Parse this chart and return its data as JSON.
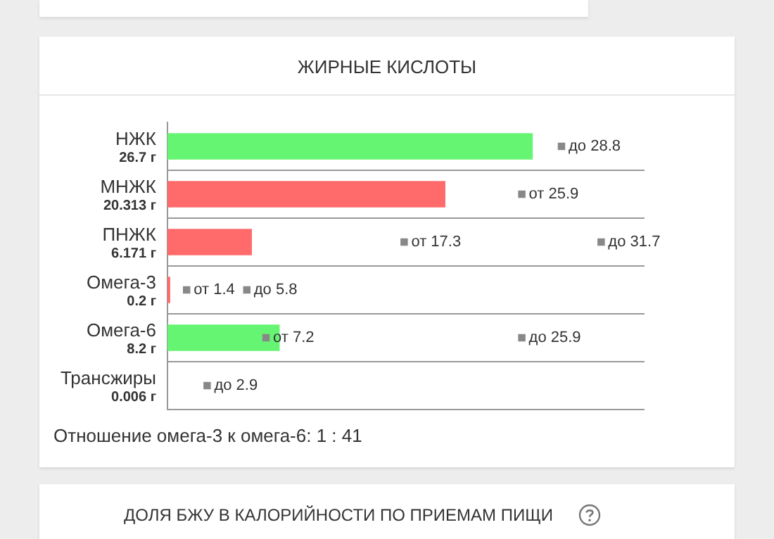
{
  "chart_data": {
    "type": "bar",
    "orientation": "horizontal",
    "title": "ЖИРНЫЕ КИСЛОТЫ",
    "categories": [
      "НЖК",
      "МНЖК",
      "ПНЖК",
      "Омега-3",
      "Омега-6",
      "Трансжиры"
    ],
    "series": [
      {
        "type": "bar",
        "values": [
          26.7,
          20.313,
          6.171,
          0.2,
          8.2,
          0.006
        ],
        "value_labels": [
          "26.7 г",
          "20.313 г",
          "6.171 г",
          "0.2 г",
          "8.2 г",
          "0.006 г"
        ],
        "colors": [
          "#66f572",
          "#ff6b6b",
          "#ff6b6b",
          "#ff6b6b",
          "#66f572",
          "#66f572"
        ]
      },
      {
        "type": "scatter",
        "marker": "square",
        "color": "#888888",
        "x": [
          "НЖК",
          "МНЖК",
          "ПНЖК",
          "ПНЖК",
          "Омега-3",
          "Омега-3",
          "Омега-6",
          "Омега-6",
          "Трансжиры"
        ],
        "values": [
          28.8,
          25.9,
          17.3,
          31.7,
          1.4,
          5.8,
          7.2,
          25.9,
          2.9
        ],
        "value_labels": [
          "до 28.8",
          "от 25.9",
          "от 17.3",
          "до 31.7",
          "от 1.4",
          "до 5.8",
          "от 7.2",
          "до 25.9",
          "до 2.9"
        ]
      }
    ],
    "grid": "y",
    "tick_labels": "y",
    "annotations": [
      "Отношение омега-3 к омега-6: 1 : 41",
      "ДОЛЯ БЖУ В КАЛОРИЙНОСТИ ПО ПРИЕМАМ ПИЩИ"
    ]
  }
}
